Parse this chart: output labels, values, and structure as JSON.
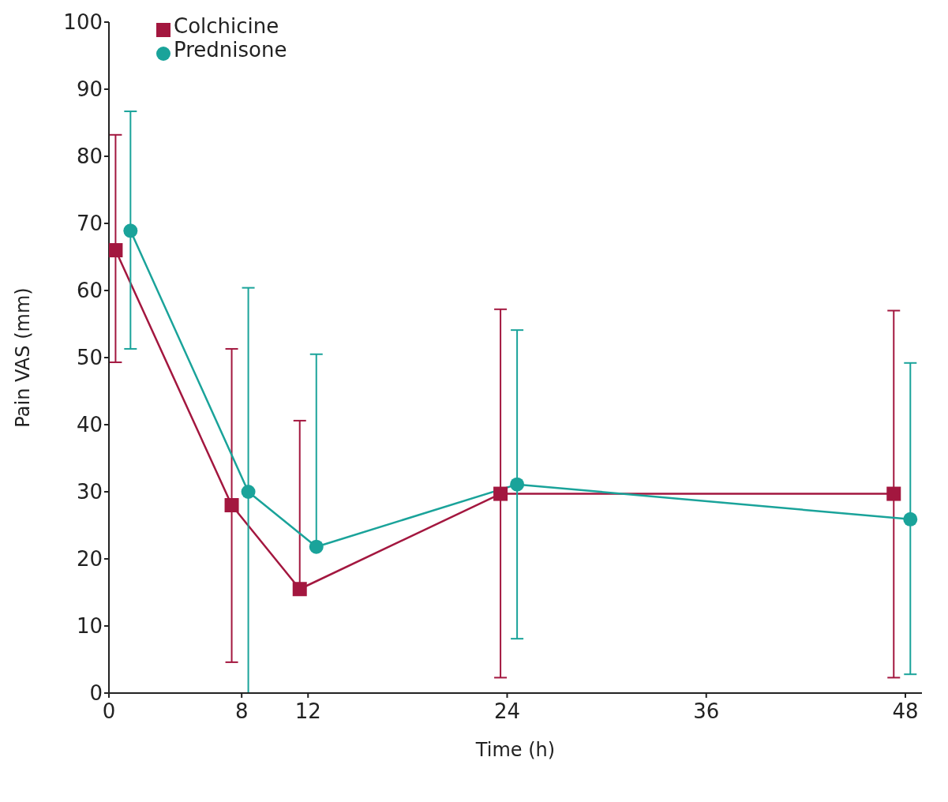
{
  "chart_data": {
    "type": "line",
    "xlabel": "Time (h)",
    "ylabel": "Pain VAS (mm)",
    "xlim": [
      0,
      49
    ],
    "xticks": [
      0,
      8,
      12,
      24,
      36,
      48
    ],
    "ylim": [
      0,
      100
    ],
    "yticks": [
      0,
      10,
      20,
      30,
      40,
      50,
      60,
      70,
      80,
      90,
      100
    ],
    "legend": "top left",
    "line_style": "solid",
    "series": [
      {
        "name": "Colchicine",
        "color": "#a3173f",
        "marker": "square",
        "x": [
          0.4,
          7.4,
          11.5,
          23.6,
          47.3
        ],
        "values": [
          66,
          28,
          15.5,
          29.7,
          29.7
        ],
        "errors": [
          [
            49.3,
            83.2
          ],
          [
            4.6,
            51.3
          ],
          [
            15.5,
            40.6
          ],
          [
            2.3,
            57.2
          ],
          [
            2.3,
            57
          ]
        ]
      },
      {
        "name": "Prednisone",
        "color": "#1aa39a",
        "marker": "circle",
        "x": [
          1.3,
          8.4,
          12.5,
          24.6,
          48.3
        ],
        "values": [
          68.9,
          30,
          21.8,
          31.1,
          25.9
        ],
        "errors": [
          [
            51.3,
            86.7
          ],
          [
            0,
            60.4
          ],
          [
            21.8,
            50.5
          ],
          [
            8.1,
            54.1
          ],
          [
            2.8,
            49.2
          ]
        ]
      }
    ]
  }
}
